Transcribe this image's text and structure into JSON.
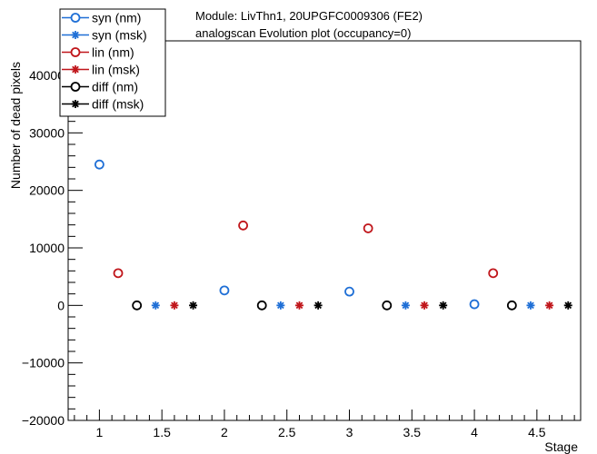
{
  "chart_data": {
    "type": "scatter",
    "title_lines": [
      "Module: LivThn1, 20UPGFC0009306 (FE2)",
      "analogscan Evolution plot (occupancy=0)"
    ],
    "xlabel": "Stage",
    "ylabel": "Number of dead pixels",
    "xlim": [
      0.75,
      4.85
    ],
    "ylim": [
      -20000,
      46000
    ],
    "x_ticks": [
      1,
      1.5,
      2,
      2.5,
      3,
      3.5,
      4,
      4.5
    ],
    "x_tick_labels": [
      "1",
      "1.5",
      "2",
      "2.5",
      "3",
      "3.5",
      "4",
      "4.5"
    ],
    "y_ticks": [
      -20000,
      -10000,
      0,
      10000,
      20000,
      30000,
      40000
    ],
    "y_tick_labels": [
      "−20000",
      "−10000",
      "0",
      "10000",
      "20000",
      "30000",
      "40000"
    ],
    "legend_position": "top-left",
    "series": [
      {
        "name": "syn (nm)",
        "color": "#1f6fd6",
        "marker": "open-circle",
        "x": [
          1,
          2,
          3,
          4
        ],
        "y": [
          24500,
          2600,
          2400,
          200
        ]
      },
      {
        "name": "syn (msk)",
        "color": "#1f6fd6",
        "marker": "star",
        "x": [
          1.45,
          2.45,
          3.45,
          4.45
        ],
        "y": [
          0,
          0,
          0,
          0
        ]
      },
      {
        "name": "lin (nm)",
        "color": "#c0161b",
        "marker": "open-circle",
        "x": [
          1.15,
          2.15,
          3.15,
          4.15
        ],
        "y": [
          5600,
          13900,
          13400,
          5600
        ]
      },
      {
        "name": "lin (msk)",
        "color": "#c0161b",
        "marker": "star",
        "x": [
          1.6,
          2.6,
          3.6,
          4.6
        ],
        "y": [
          0,
          0,
          0,
          0
        ]
      },
      {
        "name": "diff (nm)",
        "color": "#000000",
        "marker": "open-circle",
        "x": [
          1.3,
          2.3,
          3.3,
          4.3
        ],
        "y": [
          0,
          0,
          0,
          0
        ]
      },
      {
        "name": "diff (msk)",
        "color": "#000000",
        "marker": "star",
        "x": [
          1.75,
          2.75,
          3.75,
          4.75
        ],
        "y": [
          0,
          0,
          0,
          0
        ]
      }
    ]
  }
}
